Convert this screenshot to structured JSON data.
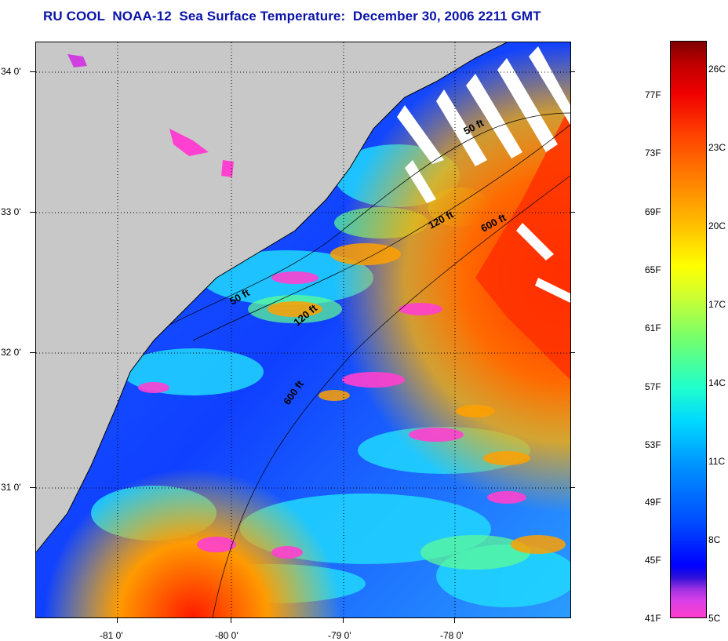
{
  "title": "RU COOL  NOAA-12  Sea Surface Temperature:  December 30, 2006 2211 GMT",
  "lat_labels": [
    "34 0'",
    "33 0'",
    "32 0'",
    "31 0'"
  ],
  "lon_labels": [
    "-81 0'",
    "-80 0'",
    "-79 0'",
    "-78 0'"
  ],
  "isobath_labels": [
    "50 ft",
    "120 ft",
    "600 ft",
    "50 ft",
    "120 ft",
    "600 ft"
  ],
  "colorbar": {
    "fahrenheit": [
      "77F",
      "73F",
      "69F",
      "65F",
      "61F",
      "57F",
      "53F",
      "49F",
      "45F",
      "41F"
    ],
    "celsius": [
      "26C",
      "23C",
      "20C",
      "17C",
      "14C",
      "11C",
      "8C",
      "5C"
    ]
  },
  "colors": {
    "title": "#0a14a8",
    "land": "#c8c8c8"
  }
}
